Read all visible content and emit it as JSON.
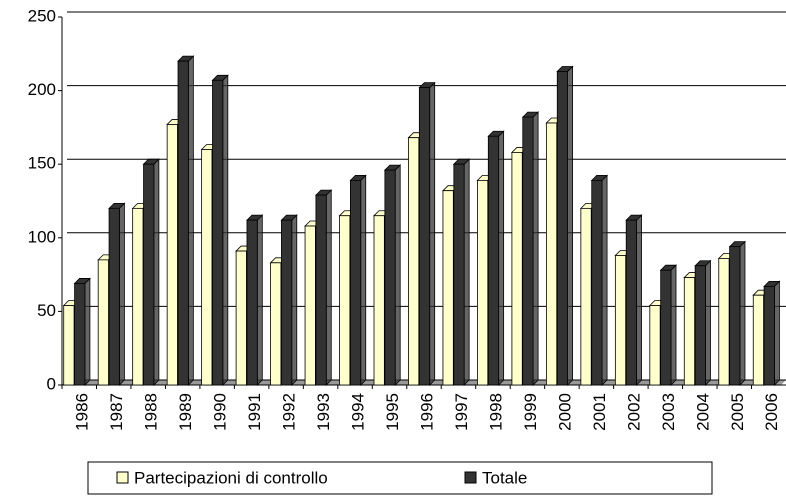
{
  "chart_data": {
    "type": "bar",
    "categories": [
      "1986",
      "1987",
      "1988",
      "1989",
      "1990",
      "1991",
      "1992",
      "1993",
      "1994",
      "1995",
      "1996",
      "1997",
      "1998",
      "1999",
      "2000",
      "2001",
      "2002",
      "2003",
      "2004",
      "2005",
      "2006"
    ],
    "series": [
      {
        "name": "Partecipazioni di controllo",
        "color": "#ffffcc",
        "values": [
          54,
          85,
          120,
          177,
          160,
          91,
          83,
          108,
          115,
          115,
          168,
          132,
          139,
          158,
          178,
          120,
          88,
          54,
          73,
          86,
          61
        ]
      },
      {
        "name": "Totale",
        "color": "#333333",
        "values": [
          69,
          120,
          150,
          220,
          207,
          112,
          112,
          129,
          139,
          146,
          202,
          150,
          169,
          182,
          213,
          139,
          112,
          78,
          81,
          94,
          67
        ]
      }
    ],
    "ylim": [
      0,
      250
    ],
    "yticks": [
      0,
      50,
      100,
      150,
      200,
      250
    ],
    "grid": true
  }
}
